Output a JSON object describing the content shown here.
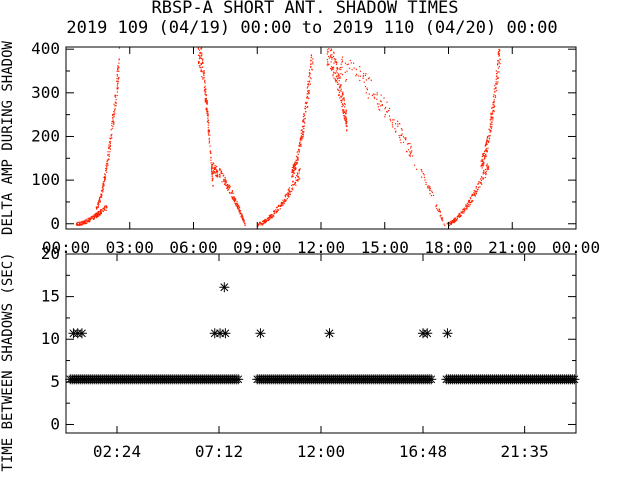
{
  "title_line1": "RBSP-A SHORT ANT. SHADOW TIMES",
  "title_line2": "2019 109 (04/19) 00:00 to 2019 110 (04/20) 00:00",
  "chart_data": [
    {
      "type": "scatter",
      "title": "",
      "ylabel": "DELTA AMP DURING SHADOW",
      "xlabel": "",
      "xlim": [
        0,
        24
      ],
      "ylim": [
        -12,
        405
      ],
      "x_ticks": [
        "00:00",
        "03:00",
        "06:00",
        "09:00",
        "12:00",
        "15:00",
        "18:00",
        "21:00",
        "00:00"
      ],
      "y_ticks": [
        "0",
        "100",
        "200",
        "300",
        "400"
      ],
      "grid": false,
      "series": [
        {
          "color": "#ff2000",
          "description": "shadow entry passes, each an arc rising from 0",
          "segments": [
            {
              "x_start": 0.45,
              "x_end": 1.9,
              "y_start": 0,
              "y_end": 40
            },
            {
              "x_start": 1.4,
              "x_end": 2.5,
              "y_start": 40,
              "y_end": 380
            },
            {
              "x_start": 6.2,
              "x_end": 6.9,
              "y_start": 400,
              "y_end": 80
            },
            {
              "x_start": 6.8,
              "x_end": 8.4,
              "y_start": 130,
              "y_end": 0
            },
            {
              "x_start": 9.0,
              "x_end": 11.0,
              "y_start": 0,
              "y_end": 120
            },
            {
              "x_start": 10.6,
              "x_end": 11.6,
              "y_start": 120,
              "y_end": 400
            },
            {
              "x_start": 12.2,
              "x_end": 13.2,
              "y_start": 400,
              "y_end": 230
            },
            {
              "x_start": 12.8,
              "x_end": 17.8,
              "y_start": 360,
              "y_end": 0
            },
            {
              "x_start": 17.9,
              "x_end": 19.9,
              "y_start": 0,
              "y_end": 140
            },
            {
              "x_start": 19.5,
              "x_end": 20.4,
              "y_start": 140,
              "y_end": 400
            }
          ]
        }
      ]
    },
    {
      "type": "scatter",
      "title": "",
      "ylabel": "TIME BETWEEN SHADOWS (SEC)",
      "xlabel": "",
      "xlim": [
        0,
        24
      ],
      "ylim": [
        -1,
        20
      ],
      "x_ticks": [
        "02:24",
        "07:12",
        "12:00",
        "16:48",
        "21:35"
      ],
      "x_tick_hours": [
        2.4,
        7.2,
        12.0,
        16.8,
        21.583
      ],
      "y_ticks": [
        "0",
        "5",
        "10",
        "15",
        "20"
      ],
      "grid": false,
      "series": [
        {
          "marker": "*",
          "color": "#000000",
          "baseline_value": 5.3,
          "baseline_ranges": [
            [
              0.2,
              8.2
            ],
            [
              9.0,
              17.2
            ],
            [
              17.9,
              24.0
            ]
          ],
          "points": [
            {
              "x": 0.35,
              "y": 10.7
            },
            {
              "x": 0.55,
              "y": 10.7
            },
            {
              "x": 0.75,
              "y": 10.7
            },
            {
              "x": 7.0,
              "y": 10.7
            },
            {
              "x": 7.25,
              "y": 10.7
            },
            {
              "x": 7.5,
              "y": 10.7
            },
            {
              "x": 7.45,
              "y": 16.1
            },
            {
              "x": 9.15,
              "y": 10.7
            },
            {
              "x": 12.4,
              "y": 10.7
            },
            {
              "x": 16.8,
              "y": 10.7
            },
            {
              "x": 17.0,
              "y": 10.7
            },
            {
              "x": 17.95,
              "y": 10.7
            }
          ]
        }
      ]
    }
  ]
}
